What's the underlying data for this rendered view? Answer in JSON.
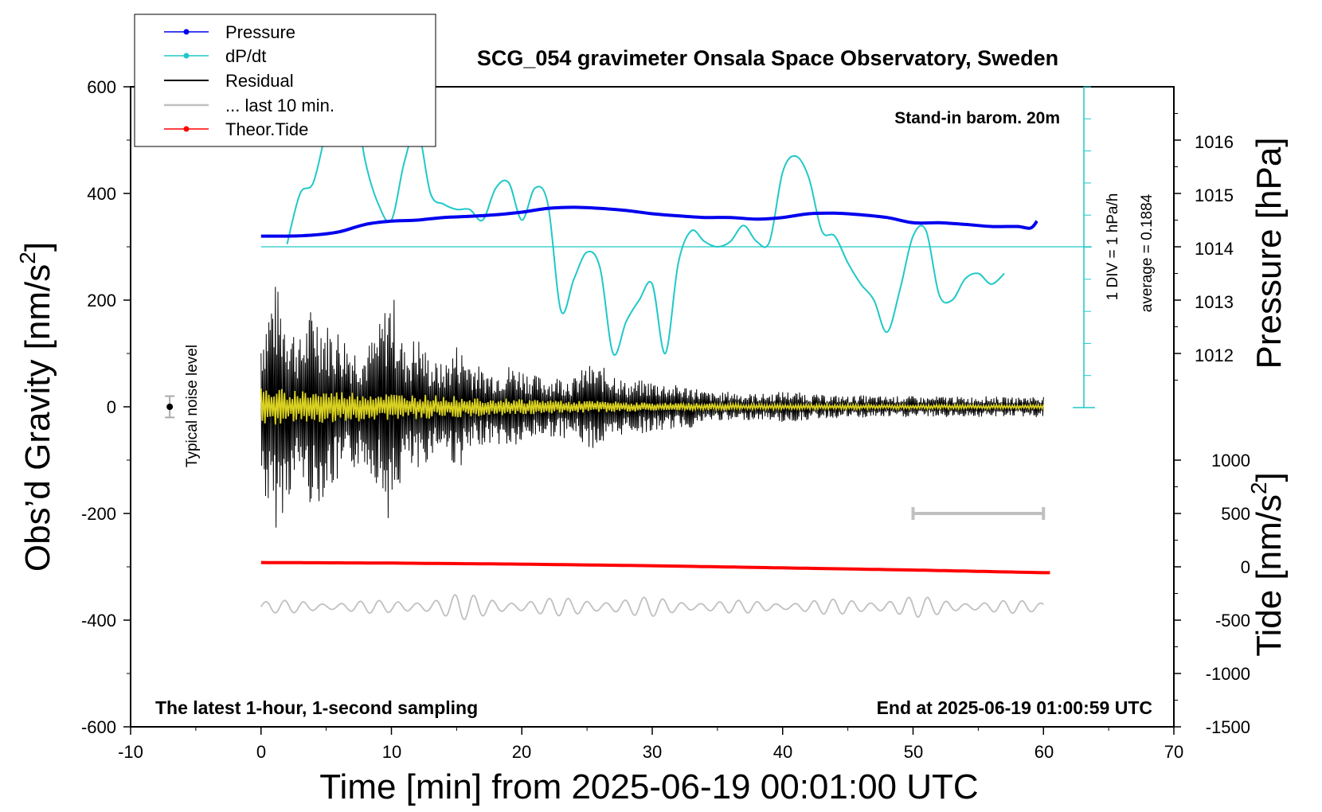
{
  "chart_data": {
    "type": "line",
    "title": "SCG_054 gravimeter Onsala Space Observatory, Sweden",
    "xlabel": "Time [min] from 2025-06-19 00:01:00 UTC",
    "ylabel_left": "Obs’d Gravity [nm/s",
    "ylabel_left_sup": "2",
    "ylabel_left_end": "]",
    "ylabel_right_pressure": "Pressure [hPa]",
    "ylabel_right_tide": "Tide [nm/s",
    "ylabel_right_tide_sup": "2",
    "ylabel_right_tide_end": "]",
    "xlim": [
      -10,
      70
    ],
    "ylim": [
      -600,
      600
    ],
    "x_ticks": [
      "-10",
      "0",
      "10",
      "20",
      "30",
      "40",
      "50",
      "60",
      "70"
    ],
    "y_ticks": [
      "600",
      "400",
      "200",
      "0",
      "-200",
      "-400",
      "-600"
    ],
    "pressure_ticks": [
      "1016",
      "1015",
      "1014",
      "1013",
      "1012"
    ],
    "tide_ticks": [
      "1000",
      "500",
      "0",
      "-500",
      "-1000",
      "-1500"
    ],
    "legend": {
      "pressure": "Pressure",
      "dpdt": "dP/dt",
      "residual": "Residual",
      "last10": "... last 10 min.",
      "tide": "Theor.Tide"
    },
    "annotations": {
      "stand_in": "Stand-in barom. 20m",
      "latest": "The latest 1-hour, 1-second sampling",
      "end_at": "End at 2025-06-19 01:00:59 UTC",
      "noise": "Typical noise level",
      "div": "1 DIV = 1 hPa/h",
      "average": "average = 0.1884"
    },
    "pressure_series": {
      "name": "Pressure",
      "unit": "hPa",
      "x": [
        0,
        2,
        4,
        6,
        8,
        10,
        12,
        14,
        16,
        18,
        20,
        22,
        24,
        26,
        28,
        30,
        32,
        34,
        36,
        38,
        40,
        42,
        44,
        46,
        48,
        50,
        52,
        54,
        56,
        58,
        59,
        59.5
      ],
      "values": [
        1014.2,
        1014.2,
        1014.22,
        1014.28,
        1014.42,
        1014.48,
        1014.5,
        1014.55,
        1014.57,
        1014.6,
        1014.65,
        1014.72,
        1014.74,
        1014.72,
        1014.68,
        1014.62,
        1014.58,
        1014.55,
        1014.55,
        1014.52,
        1014.55,
        1014.62,
        1014.63,
        1014.6,
        1014.55,
        1014.45,
        1014.45,
        1014.42,
        1014.38,
        1014.38,
        1014.35,
        1014.48
      ]
    },
    "dpdt_series": {
      "name": "dP/dt",
      "unit": "hPa/h",
      "zero_level_hPa": 1014,
      "x": [
        2,
        3,
        4,
        5,
        6,
        7,
        8,
        9,
        10,
        11,
        12,
        13,
        14,
        15,
        16,
        17,
        18,
        19,
        20,
        21,
        22,
        23,
        24,
        25,
        26,
        27,
        28,
        29,
        30,
        31,
        32,
        33,
        34,
        35,
        36,
        37,
        38,
        39,
        40,
        41,
        42,
        43,
        44,
        45,
        46,
        47,
        48,
        49,
        50,
        51,
        52,
        53,
        54,
        55,
        56,
        57
      ],
      "values": [
        0.05,
        1.0,
        1.2,
        2.2,
        3.2,
        3.0,
        1.6,
        0.8,
        0.5,
        1.6,
        2.2,
        1.0,
        0.8,
        0.7,
        0.7,
        0.5,
        1.1,
        1.2,
        0.5,
        1.1,
        0.8,
        -1.2,
        -0.6,
        -0.1,
        -0.4,
        -2.0,
        -1.4,
        -1.0,
        -0.7,
        -2.0,
        -0.3,
        0.3,
        0.1,
        0.0,
        0.1,
        0.4,
        0.1,
        0.1,
        1.4,
        1.7,
        1.3,
        0.3,
        0.2,
        -0.3,
        -0.7,
        -1.0,
        -1.6,
        -0.8,
        0.2,
        0.3,
        -0.9,
        -1.0,
        -0.6,
        -0.5,
        -0.7,
        -0.5
      ]
    },
    "residual_envelope": {
      "name": "Residual",
      "unit": "nm/s2",
      "x": [
        0,
        1,
        2,
        3,
        4,
        5,
        6,
        7,
        8,
        9,
        10,
        11,
        12,
        13,
        14,
        15,
        16,
        17,
        18,
        19,
        20,
        21,
        22,
        23,
        24,
        25,
        26,
        27,
        28,
        29,
        30,
        31,
        32,
        33,
        34,
        35,
        36,
        37,
        38,
        39,
        40,
        41,
        42,
        43,
        44,
        45,
        46,
        47,
        48,
        49,
        50,
        51,
        52,
        53,
        54,
        55,
        56,
        57,
        58,
        59,
        60
      ],
      "values": [
        150,
        240,
        180,
        130,
        200,
        160,
        150,
        120,
        110,
        150,
        230,
        110,
        140,
        90,
        80,
        120,
        95,
        70,
        70,
        80,
        75,
        60,
        55,
        60,
        55,
        80,
        75,
        70,
        45,
        50,
        50,
        45,
        40,
        40,
        30,
        25,
        30,
        25,
        25,
        25,
        30,
        28,
        25,
        22,
        22,
        20,
        22,
        20,
        20,
        20,
        20,
        18,
        20,
        20,
        18,
        20,
        20,
        18,
        18,
        20,
        20
      ]
    },
    "residual_smoothed_amplitude": {
      "x": [
        0,
        10,
        20,
        30,
        40,
        50,
        60
      ],
      "values": [
        35,
        25,
        15,
        8,
        5,
        4,
        4
      ]
    },
    "last10_series": {
      "name": "... last 10 min.",
      "baseline_nm_s2": -375,
      "x": [
        0,
        5,
        10,
        15,
        20,
        25,
        30,
        35,
        40,
        45,
        50,
        55,
        60
      ],
      "amplitude": [
        12,
        12,
        12,
        25,
        15,
        18,
        18,
        12,
        12,
        15,
        20,
        12,
        12
      ]
    },
    "tide_series": {
      "name": "Theor.Tide",
      "unit": "nm/s2",
      "x": [
        0,
        10,
        20,
        30,
        40,
        50,
        60
      ],
      "values": [
        40,
        35,
        25,
        10,
        -10,
        -30,
        -55
      ]
    },
    "noise_bar": {
      "x": -7,
      "value": 0,
      "error": 20
    },
    "gray_scale_bar": {
      "x_start": 50,
      "x_end": 60,
      "value": -200
    },
    "colors": {
      "pressure": "#0000ee",
      "dpdt": "#20c8c8",
      "residual": "#000000",
      "residual_smooth": "#d8d020",
      "last10": "#c0c0c0",
      "tide": "#ff0000",
      "axis": "#000000"
    }
  }
}
